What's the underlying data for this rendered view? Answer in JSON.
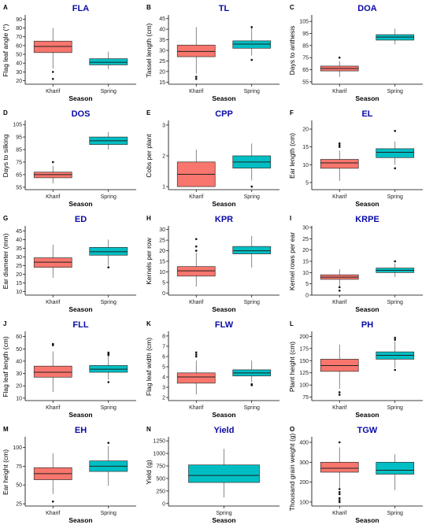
{
  "colors": {
    "Kharif": "#f8766d",
    "Spring": "#00bfc4",
    "title": "#0a0aa8"
  },
  "chart_data": [
    {
      "type": "box",
      "label": "A",
      "title": "FLA",
      "ylabel": "Flag leaf angle (°)",
      "xlabel": "Season",
      "ylim": [
        16,
        93
      ],
      "yticks": [
        20,
        30,
        40,
        50,
        60,
        70,
        80,
        90
      ],
      "categories": [
        "Kharif",
        "Spring"
      ],
      "boxes": [
        {
          "min": 34,
          "q1": 52,
          "median": 59,
          "q3": 65,
          "max": 80,
          "outliers": [
            30,
            22
          ]
        },
        {
          "min": 33,
          "q1": 38,
          "median": 41,
          "q3": 45,
          "max": 53,
          "outliers": []
        }
      ]
    },
    {
      "type": "box",
      "label": "B",
      "title": "TL",
      "ylabel": "Tassel length (cm)",
      "xlabel": "Season",
      "ylim": [
        14,
        46
      ],
      "yticks": [
        15,
        20,
        25,
        30,
        35,
        40,
        45
      ],
      "categories": [
        "Kharif",
        "Spring"
      ],
      "boxes": [
        {
          "min": 19,
          "q1": 27,
          "median": 29.5,
          "q3": 32.5,
          "max": 41,
          "outliers": [
            17.5,
            16.5
          ]
        },
        {
          "min": 27.5,
          "q1": 31,
          "median": 33,
          "q3": 34.5,
          "max": 41,
          "outliers": [
            41,
            25.5
          ]
        }
      ]
    },
    {
      "type": "box",
      "label": "C",
      "title": "DOA",
      "ylabel": "Days to anthesis",
      "xlabel": "Season",
      "ylim": [
        53,
        109
      ],
      "yticks": [
        55,
        65,
        75,
        85,
        95,
        105
      ],
      "categories": [
        "Kharif",
        "Spring"
      ],
      "boxes": [
        {
          "min": 59,
          "q1": 64,
          "median": 66,
          "q3": 68,
          "max": 72,
          "outliers": [
            75
          ]
        },
        {
          "min": 86,
          "q1": 89.5,
          "median": 92,
          "q3": 94,
          "max": 99,
          "outliers": []
        }
      ]
    },
    {
      "type": "box",
      "label": "D",
      "title": "DOS",
      "ylabel": "Days to silking",
      "xlabel": "Season",
      "ylim": [
        53,
        107
      ],
      "yticks": [
        55,
        65,
        75,
        85,
        95,
        105
      ],
      "categories": [
        "Kharif",
        "Spring"
      ],
      "boxes": [
        {
          "min": 58,
          "q1": 62.5,
          "median": 65,
          "q3": 67,
          "max": 72,
          "outliers": [
            75
          ]
        },
        {
          "min": 85,
          "q1": 89,
          "median": 92,
          "q3": 95,
          "max": 99,
          "outliers": []
        }
      ]
    },
    {
      "type": "box",
      "label": "E",
      "title": "CPP",
      "ylabel": "Cobs per plant",
      "xlabel": "Season",
      "ylim": [
        0.9,
        3.1
      ],
      "yticks": [
        1,
        2,
        3
      ],
      "categories": [
        "Kharif",
        "Spring"
      ],
      "boxes": [
        {
          "min": 1,
          "q1": 1,
          "median": 1.4,
          "q3": 1.8,
          "max": 2.2,
          "outliers": []
        },
        {
          "min": 1.2,
          "q1": 1.6,
          "median": 1.8,
          "q3": 2,
          "max": 2.4,
          "outliers": [
            1
          ]
        }
      ]
    },
    {
      "type": "box",
      "label": "F",
      "title": "EL",
      "ylabel": "Ear length (cm)",
      "xlabel": "Season",
      "ylim": [
        3,
        22
      ],
      "yticks": [
        5,
        10,
        15,
        20
      ],
      "categories": [
        "Kharif",
        "Spring"
      ],
      "boxes": [
        {
          "min": 5.5,
          "q1": 9,
          "median": 10.5,
          "q3": 11.5,
          "max": 14,
          "outliers": [
            15,
            15.5,
            16
          ]
        },
        {
          "min": 10,
          "q1": 12,
          "median": 13.5,
          "q3": 14.5,
          "max": 16.5,
          "outliers": [
            19.5,
            9
          ]
        }
      ]
    },
    {
      "type": "box",
      "label": "G",
      "title": "ED",
      "ylabel": "Ear diameter (mm)",
      "xlabel": "Season",
      "ylim": [
        8,
        47
      ],
      "yticks": [
        10,
        15,
        20,
        25,
        30,
        35,
        40,
        45
      ],
      "categories": [
        "Kharif",
        "Spring"
      ],
      "boxes": [
        {
          "min": 18,
          "q1": 24,
          "median": 27,
          "q3": 29.5,
          "max": 37,
          "outliers": []
        },
        {
          "min": 25,
          "q1": 31,
          "median": 33,
          "q3": 35.5,
          "max": 40,
          "outliers": [
            24
          ]
        }
      ]
    },
    {
      "type": "box",
      "label": "H",
      "title": "KPR",
      "ylabel": "Kernels per row",
      "xlabel": "Season",
      "ylim": [
        -1,
        31
      ],
      "yticks": [
        0,
        5,
        10,
        15,
        20,
        25,
        30
      ],
      "categories": [
        "Kharif",
        "Spring"
      ],
      "boxes": [
        {
          "min": 3,
          "q1": 8,
          "median": 10.5,
          "q3": 12.5,
          "max": 19,
          "outliers": [
            20,
            22,
            25.5
          ]
        },
        {
          "min": 12,
          "q1": 18.5,
          "median": 20,
          "q3": 22,
          "max": 27,
          "outliers": []
        }
      ]
    },
    {
      "type": "box",
      "label": "I",
      "title": "KRPE",
      "ylabel": "Kernel rows per ear",
      "xlabel": "Season",
      "ylim": [
        0,
        30
      ],
      "yticks": [
        0,
        5,
        10,
        15,
        20,
        25,
        30
      ],
      "categories": [
        "Kharif",
        "Spring"
      ],
      "boxes": [
        {
          "min": 4,
          "q1": 7,
          "median": 8,
          "q3": 9,
          "max": 11.5,
          "outliers": [
            3.5,
            2
          ]
        },
        {
          "min": 8,
          "q1": 10,
          "median": 11,
          "q3": 12,
          "max": 14,
          "outliers": [
            15
          ]
        }
      ]
    },
    {
      "type": "box",
      "label": "J",
      "title": "FLL",
      "ylabel": "Flag leaf length (cm)",
      "xlabel": "Season",
      "ylim": [
        8,
        63
      ],
      "yticks": [
        10,
        20,
        30,
        40,
        50,
        60
      ],
      "categories": [
        "Kharif",
        "Spring"
      ],
      "boxes": [
        {
          "min": 15,
          "q1": 27,
          "median": 31,
          "q3": 36,
          "max": 48,
          "outliers": [
            53,
            54
          ]
        },
        {
          "min": 25,
          "q1": 31,
          "median": 33.5,
          "q3": 36.5,
          "max": 44,
          "outliers": [
            45,
            46,
            47,
            23
          ]
        }
      ]
    },
    {
      "type": "box",
      "label": "K",
      "title": "FLW",
      "ylabel": "Flag leaf width (cm)",
      "xlabel": "Season",
      "ylim": [
        1.7,
        8.3
      ],
      "yticks": [
        2,
        3,
        4,
        5,
        6,
        7,
        8
      ],
      "categories": [
        "Kharif",
        "Spring"
      ],
      "boxes": [
        {
          "min": 2.3,
          "q1": 3.4,
          "median": 4,
          "q3": 4.4,
          "max": 5.6,
          "outliers": [
            6,
            6.2,
            6.4
          ]
        },
        {
          "min": 3.5,
          "q1": 4.1,
          "median": 4.4,
          "q3": 4.7,
          "max": 5.6,
          "outliers": [
            3.3,
            3.2
          ]
        }
      ]
    },
    {
      "type": "box",
      "label": "L",
      "title": "PH",
      "ylabel": "Plant height (cm)",
      "xlabel": "Season",
      "ylim": [
        68,
        207
      ],
      "yticks": [
        75,
        100,
        125,
        150,
        175,
        200
      ],
      "categories": [
        "Kharif",
        "Spring"
      ],
      "boxes": [
        {
          "min": 92,
          "q1": 128,
          "median": 140,
          "q3": 153,
          "max": 183,
          "outliers": [
            85,
            80
          ]
        },
        {
          "min": 135,
          "q1": 153,
          "median": 161,
          "q3": 168,
          "max": 190,
          "outliers": [
            193,
            197,
            131
          ]
        }
      ]
    },
    {
      "type": "box",
      "label": "M",
      "title": "EH",
      "ylabel": "Ear height (cm)",
      "xlabel": "Season",
      "ylim": [
        22,
        112
      ],
      "yticks": [
        25,
        50,
        75,
        100
      ],
      "categories": [
        "Kharif",
        "Spring"
      ],
      "boxes": [
        {
          "min": 38,
          "q1": 57,
          "median": 65,
          "q3": 73,
          "max": 92,
          "outliers": [
            28
          ]
        },
        {
          "min": 49,
          "q1": 68,
          "median": 75,
          "q3": 82,
          "max": 102,
          "outliers": [
            106
          ]
        }
      ]
    },
    {
      "type": "box",
      "label": "N",
      "title": "Yield",
      "ylabel": "Yield (g)",
      "xlabel": "Season",
      "ylim": [
        -50,
        1300
      ],
      "yticks": [
        0,
        250,
        500,
        750,
        1000,
        1250
      ],
      "categories": [
        "Spring"
      ],
      "boxes": [
        {
          "min": 120,
          "q1": 420,
          "median": 560,
          "q3": 770,
          "max": 1090,
          "outliers": []
        }
      ]
    },
    {
      "type": "box",
      "label": "O",
      "title": "TGW",
      "ylabel": "Thousand grain weight (g)",
      "xlabel": "Season",
      "ylim": [
        80,
        420
      ],
      "yticks": [
        100,
        200,
        300,
        400
      ],
      "categories": [
        "Kharif",
        "Spring"
      ],
      "boxes": [
        {
          "min": 165,
          "q1": 250,
          "median": 270,
          "q3": 300,
          "max": 375,
          "outliers": [
            400,
            165,
            150,
            140,
            120,
            110,
            100
          ]
        },
        {
          "min": 160,
          "q1": 240,
          "median": 260,
          "q3": 300,
          "max": 340,
          "outliers": []
        }
      ]
    }
  ]
}
